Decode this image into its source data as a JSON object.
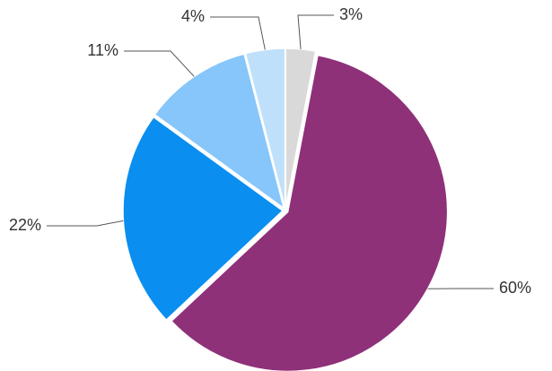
{
  "chart_data": {
    "type": "pie",
    "values": [
      3,
      60,
      22,
      11,
      4
    ],
    "value_labels": [
      "3%",
      "60%",
      "22%",
      "11%",
      "4%"
    ],
    "colors": [
      "#d9d9d9",
      "#8e3179",
      "#0a8ef0",
      "#86c6fa",
      "#bfe0fb"
    ]
  }
}
